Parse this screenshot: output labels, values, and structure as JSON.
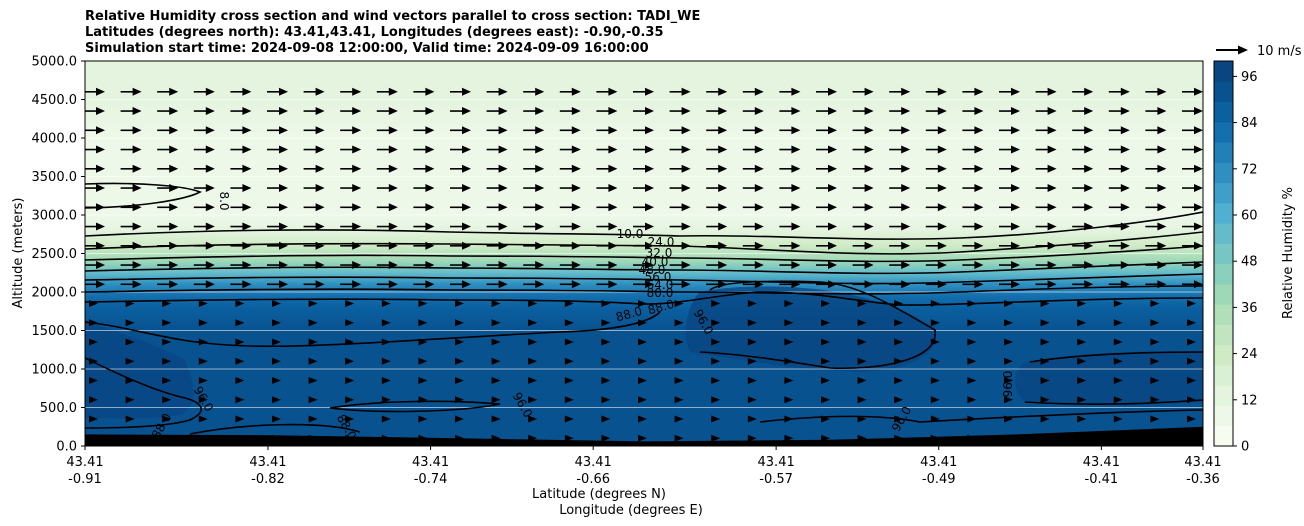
{
  "title": {
    "line1": "Relative Humidity cross section and wind vectors parallel to cross section: TADI_WE",
    "line2": "Latitudes (degrees north): 43.41,43.41, Longitudes (degrees east): -0.90,-0.35",
    "line3": "Simulation start time: 2024-09-08 12:00:00, Valid time: 2024-09-09 16:00:00"
  },
  "chart_data": {
    "type": "heatmap",
    "field": "relative_humidity",
    "xlabel": "Latitude (degrees N)",
    "xlabel2": "Longitude (degrees E)",
    "ylabel": "Altitude (meters)",
    "ylim": [
      0,
      5000
    ],
    "yticks": [
      "0.0",
      "500.0",
      "1000.0",
      "1500.0",
      "2000.0",
      "2500.0",
      "3000.0",
      "3500.0",
      "4000.0",
      "4500.0",
      "5000.0"
    ],
    "xticks": [
      {
        "lat": "43.41",
        "lon": "-0.91"
      },
      {
        "lat": "43.41",
        "lon": "-0.82"
      },
      {
        "lat": "43.41",
        "lon": "-0.74"
      },
      {
        "lat": "43.41",
        "lon": "-0.66"
      },
      {
        "lat": "43.41",
        "lon": "-0.57"
      },
      {
        "lat": "43.41",
        "lon": "-0.49"
      },
      {
        "lat": "43.41",
        "lon": "-0.41"
      },
      {
        "lat": "43.41",
        "lon": "-0.36"
      }
    ],
    "lon_range": [
      -0.91,
      -0.36
    ],
    "grid": "horizontal",
    "colorbar": {
      "label": "Relative Humidity %",
      "range": [
        0,
        100
      ],
      "ticks": [
        "0",
        "12",
        "24",
        "36",
        "48",
        "60",
        "72",
        "84",
        "96"
      ],
      "colors": [
        "#f7fcf0",
        "#eef8e9",
        "#e4f4df",
        "#daf0d4",
        "#cfebc5",
        "#c1e6bf",
        "#b0dfb8",
        "#9ed8b7",
        "#8bd0bd",
        "#77c6c4",
        "#64bccb",
        "#51afd1",
        "#3f9fca",
        "#2f8fc0",
        "#2080b7",
        "#136fae",
        "#0b60a0",
        "#085290",
        "#084581"
      ]
    },
    "quiver_key": {
      "label": "10 m/s"
    },
    "contour_labels": [
      "8.0",
      "10.0",
      "24.0",
      "32.0",
      "40.0",
      "48.0",
      "56.0",
      "64.0",
      "80.0",
      "88.0",
      "88.0",
      "96.0",
      "96.0",
      "96.0",
      "96.0",
      "96.0",
      "88.0",
      "88.0"
    ],
    "layers": [
      {
        "altitude": 5000,
        "rh": 14
      },
      {
        "altitude": 4500,
        "rh": 12
      },
      {
        "altitude": 4000,
        "rh": 10
      },
      {
        "altitude": 3500,
        "rh": 8
      },
      {
        "altitude": 3000,
        "rh": 9
      },
      {
        "altitude": 2800,
        "rh": 14
      },
      {
        "altitude": 2600,
        "rh": 26
      },
      {
        "altitude": 2400,
        "rh": 40
      },
      {
        "altitude": 2250,
        "rh": 55
      },
      {
        "altitude": 2100,
        "rh": 70
      },
      {
        "altitude": 1950,
        "rh": 82
      },
      {
        "altitude": 1800,
        "rh": 88
      },
      {
        "altitude": 1500,
        "rh": 92
      },
      {
        "altitude": 1000,
        "rh": 93
      },
      {
        "altitude": 500,
        "rh": 92
      },
      {
        "altitude": 0,
        "rh": 91
      }
    ],
    "terrain_altitude": [
      150,
      140,
      100,
      60,
      80,
      150,
      250
    ]
  }
}
